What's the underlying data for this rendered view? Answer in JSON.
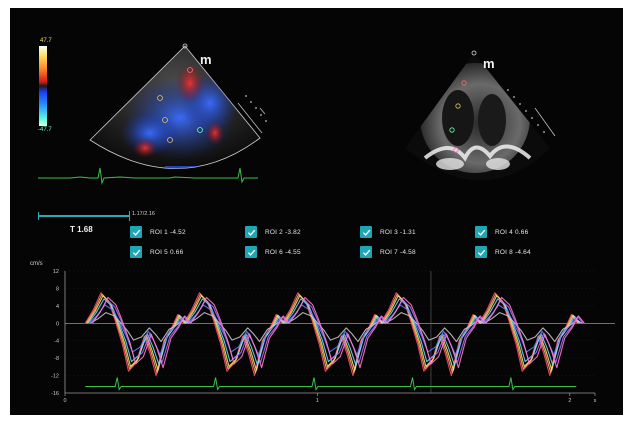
{
  "colorbar": {
    "max_label": "47.7",
    "min_label": "-47.7"
  },
  "sector_marker_left": "m",
  "sector_marker_right": "m",
  "time_readout": "T 1.68",
  "frame_readout": "1.17/2.16",
  "rois": [
    {
      "label": "ROI 1",
      "value": "-4.52",
      "checked": true
    },
    {
      "label": "ROI 2",
      "value": "-3.82",
      "checked": true
    },
    {
      "label": "ROI 3",
      "value": "-1.31",
      "checked": true
    },
    {
      "label": "ROI 4",
      "value": "0.66",
      "checked": true
    },
    {
      "label": "ROI 5",
      "value": "0.66",
      "checked": true
    },
    {
      "label": "ROI 6",
      "value": "-4.55",
      "checked": true
    },
    {
      "label": "ROI 7",
      "value": "-4.58",
      "checked": true
    },
    {
      "label": "ROI 8",
      "value": "-4.64",
      "checked": true
    }
  ],
  "chart_data": {
    "type": "line",
    "ylabel": "cm/s",
    "ylim": [
      -16,
      12
    ],
    "yticks": [
      "12",
      "8",
      "4",
      "0",
      "-4",
      "-8",
      "-12",
      "-16"
    ],
    "xticks": [
      "0",
      "1",
      "2",
      "s"
    ],
    "xlim": [
      0,
      2.1
    ],
    "grid": true,
    "beats": 5,
    "series_colors": [
      "#ff4a6e",
      "#ffb066",
      "#f2e66a",
      "#6ed6ff",
      "#5a7dff",
      "#c8c8c8",
      "#b06aff",
      "#ff7ad0"
    ],
    "waveform_template": {
      "phase": [
        0.0,
        0.08,
        0.16,
        0.24,
        0.3,
        0.38,
        0.44,
        0.52,
        0.6,
        0.66,
        0.72,
        0.8,
        0.88,
        0.94,
        1.0
      ],
      "value": [
        0,
        3,
        7,
        5,
        1,
        -5,
        -11,
        -9,
        -3,
        -7,
        -12,
        -4,
        -1,
        2,
        0
      ]
    },
    "series_scale": [
      1.0,
      0.95,
      0.9,
      0.8,
      0.6,
      0.35,
      0.75,
      0.85
    ],
    "ecg_color": "#38c24a"
  },
  "colors": {
    "background": "#050505",
    "accent": "#1fa6b4",
    "axis": "#9a9a9a",
    "ecg": "#38c24a"
  }
}
